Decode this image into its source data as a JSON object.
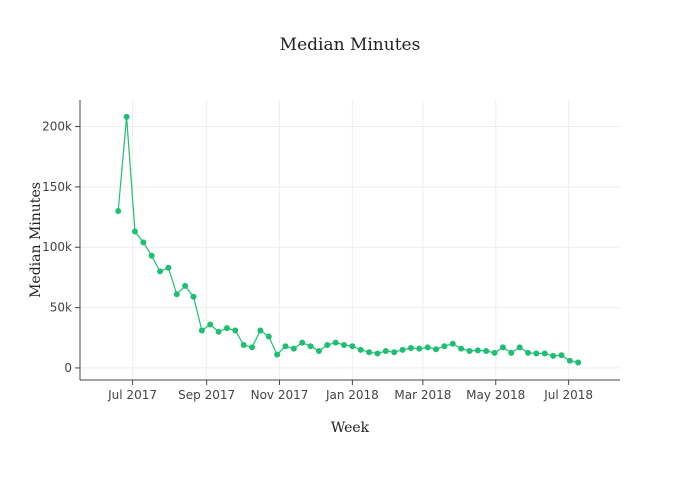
{
  "chart_data": {
    "type": "line",
    "title": "Median Minutes",
    "xlabel": "Week",
    "ylabel": "Median Minutes",
    "x_ticks": [
      {
        "date": "2017-07-01",
        "label": "Jul 2017"
      },
      {
        "date": "2017-09-01",
        "label": "Sep 2017"
      },
      {
        "date": "2017-11-01",
        "label": "Nov 2017"
      },
      {
        "date": "2018-01-01",
        "label": "Jan 2018"
      },
      {
        "date": "2018-03-01",
        "label": "Mar 2018"
      },
      {
        "date": "2018-05-01",
        "label": "May 2018"
      },
      {
        "date": "2018-07-01",
        "label": "Jul 2018"
      }
    ],
    "y_ticks": [
      {
        "value": 0,
        "label": "0"
      },
      {
        "value": 50000,
        "label": "50k"
      },
      {
        "value": 100000,
        "label": "100k"
      },
      {
        "value": 150000,
        "label": "150k"
      },
      {
        "value": 200000,
        "label": "200k"
      }
    ],
    "xlim": [
      "2017-05-18",
      "2018-08-13"
    ],
    "ylim": [
      -10000,
      222000
    ],
    "grid": true,
    "color": "#1fbf73",
    "series": [
      {
        "x": [
          "2017-06-19",
          "2017-06-26",
          "2017-07-03",
          "2017-07-10",
          "2017-07-17",
          "2017-07-24",
          "2017-07-31",
          "2017-08-07",
          "2017-08-14",
          "2017-08-21",
          "2017-08-28",
          "2017-09-04",
          "2017-09-11",
          "2017-09-18",
          "2017-09-25",
          "2017-10-02",
          "2017-10-09",
          "2017-10-16",
          "2017-10-23",
          "2017-10-30",
          "2017-11-06",
          "2017-11-13",
          "2017-11-20",
          "2017-11-27",
          "2017-12-04",
          "2017-12-11",
          "2017-12-18",
          "2017-12-25",
          "2018-01-01",
          "2018-01-08",
          "2018-01-15",
          "2018-01-22",
          "2018-01-29",
          "2018-02-05",
          "2018-02-12",
          "2018-02-19",
          "2018-02-26",
          "2018-03-05",
          "2018-03-12",
          "2018-03-19",
          "2018-03-26",
          "2018-04-02",
          "2018-04-09",
          "2018-04-16",
          "2018-04-23",
          "2018-04-30",
          "2018-05-07",
          "2018-05-14",
          "2018-05-21",
          "2018-05-28",
          "2018-06-04",
          "2018-06-11",
          "2018-06-18",
          "2018-06-25",
          "2018-07-02",
          "2018-07-09"
        ],
        "y": [
          130000,
          208000,
          113000,
          104000,
          93000,
          80000,
          83000,
          61000,
          68000,
          59000,
          31000,
          36000,
          30000,
          33000,
          31000,
          19000,
          17000,
          31000,
          26000,
          11000,
          18000,
          16000,
          21000,
          18000,
          14000,
          19000,
          21000,
          19000,
          18000,
          15000,
          13000,
          12000,
          14000,
          13000,
          15000,
          16500,
          16000,
          17000,
          15500,
          18000,
          20000,
          16000,
          14000,
          14500,
          14000,
          12500,
          17000,
          12500,
          17000,
          12500,
          12000,
          12000,
          10000,
          10500,
          6000,
          4500
        ]
      }
    ]
  }
}
